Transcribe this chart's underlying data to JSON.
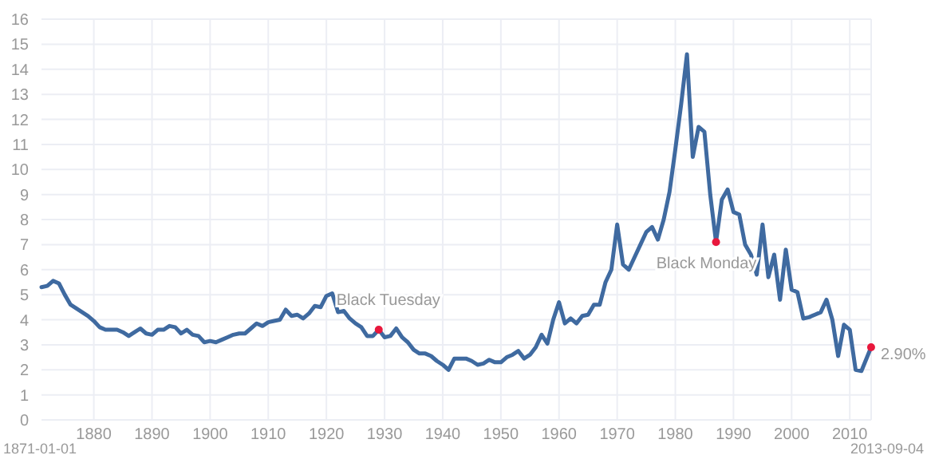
{
  "chart_data": {
    "type": "line",
    "xlim": [
      "1871-01-01",
      "2013-09-04"
    ],
    "xticks": [
      "1880",
      "1890",
      "1900",
      "1910",
      "1920",
      "1930",
      "1940",
      "1950",
      "1960",
      "1970",
      "1980",
      "1990",
      "2000",
      "2010"
    ],
    "ylim": [
      0,
      16
    ],
    "yticks": [
      0,
      1,
      2,
      3,
      4,
      5,
      6,
      7,
      8,
      9,
      10,
      11,
      12,
      13,
      14,
      15,
      16
    ],
    "grid": true,
    "line_style": "solid",
    "marker": "none",
    "x": [
      "1871-01",
      "1872-01",
      "1873-01",
      "1874-01",
      "1875-01",
      "1876-01",
      "1877-01",
      "1878-01",
      "1879-01",
      "1880-01",
      "1881-01",
      "1882-01",
      "1883-01",
      "1884-01",
      "1885-01",
      "1886-01",
      "1887-01",
      "1888-01",
      "1889-01",
      "1890-01",
      "1891-01",
      "1892-01",
      "1893-01",
      "1894-01",
      "1895-01",
      "1896-01",
      "1897-01",
      "1898-01",
      "1899-01",
      "1900-01",
      "1901-01",
      "1902-01",
      "1903-01",
      "1904-01",
      "1905-01",
      "1906-01",
      "1907-01",
      "1908-01",
      "1909-01",
      "1910-01",
      "1911-01",
      "1912-01",
      "1913-01",
      "1914-01",
      "1915-01",
      "1916-01",
      "1917-01",
      "1918-01",
      "1919-01",
      "1920-01",
      "1921-01",
      "1922-01",
      "1923-01",
      "1924-01",
      "1925-01",
      "1926-01",
      "1927-01",
      "1928-01",
      "1929-01",
      "1930-01",
      "1931-01",
      "1932-01",
      "1933-01",
      "1934-01",
      "1935-01",
      "1936-01",
      "1937-01",
      "1938-01",
      "1939-01",
      "1940-01",
      "1941-01",
      "1942-01",
      "1943-01",
      "1944-01",
      "1945-01",
      "1946-01",
      "1947-01",
      "1948-01",
      "1949-01",
      "1950-01",
      "1951-01",
      "1952-01",
      "1953-01",
      "1954-01",
      "1955-01",
      "1956-01",
      "1957-01",
      "1958-01",
      "1959-01",
      "1960-01",
      "1961-01",
      "1962-01",
      "1963-01",
      "1964-01",
      "1965-01",
      "1966-01",
      "1967-01",
      "1968-01",
      "1969-01",
      "1970-01",
      "1971-01",
      "1972-01",
      "1973-01",
      "1974-01",
      "1975-01",
      "1976-01",
      "1977-01",
      "1978-01",
      "1979-01",
      "1980-01",
      "1981-01",
      "1982-01",
      "1983-01",
      "1984-01",
      "1985-01",
      "1986-01",
      "1987-01",
      "1988-01",
      "1989-01",
      "1990-01",
      "1991-01",
      "1992-01",
      "1993-01",
      "1994-01",
      "1995-01",
      "1996-01",
      "1997-01",
      "1998-01",
      "1999-01",
      "2000-01",
      "2001-01",
      "2002-01",
      "2003-01",
      "2004-01",
      "2005-01",
      "2006-01",
      "2007-01",
      "2008-01",
      "2009-01",
      "2010-01",
      "2011-01",
      "2012-01",
      "2013-09"
    ],
    "series": [
      {
        "color": "#3f6aa0",
        "values": [
          5.3,
          5.35,
          5.55,
          5.45,
          5.0,
          4.6,
          4.45,
          4.3,
          4.15,
          3.95,
          3.7,
          3.6,
          3.6,
          3.6,
          3.5,
          3.35,
          3.5,
          3.65,
          3.45,
          3.4,
          3.6,
          3.6,
          3.75,
          3.7,
          3.45,
          3.6,
          3.4,
          3.35,
          3.1,
          3.15,
          3.1,
          3.2,
          3.3,
          3.4,
          3.45,
          3.45,
          3.65,
          3.85,
          3.75,
          3.9,
          3.95,
          4.0,
          4.4,
          4.15,
          4.2,
          4.05,
          4.25,
          4.55,
          4.5,
          4.95,
          5.05,
          4.3,
          4.35,
          4.05,
          3.85,
          3.7,
          3.35,
          3.35,
          3.6,
          3.3,
          3.35,
          3.65,
          3.3,
          3.1,
          2.8,
          2.65,
          2.65,
          2.55,
          2.35,
          2.2,
          2.0,
          2.45,
          2.45,
          2.45,
          2.35,
          2.2,
          2.25,
          2.4,
          2.3,
          2.3,
          2.5,
          2.6,
          2.75,
          2.45,
          2.6,
          2.9,
          3.4,
          3.05,
          4.0,
          4.7,
          3.85,
          4.05,
          3.85,
          4.15,
          4.2,
          4.6,
          4.6,
          5.5,
          6.0,
          7.8,
          6.2,
          6.0,
          6.5,
          7.0,
          7.5,
          7.7,
          7.2,
          8.0,
          9.1,
          10.8,
          12.6,
          14.6,
          10.5,
          11.7,
          11.5,
          9.0,
          7.1,
          8.8,
          9.2,
          8.3,
          8.2,
          7.0,
          6.6,
          5.8,
          7.8,
          5.7,
          6.6,
          4.8,
          6.8,
          5.2,
          5.1,
          4.05,
          4.1,
          4.2,
          4.3,
          4.8,
          4.0,
          2.55,
          3.8,
          3.6,
          2.0,
          1.95,
          2.9
        ]
      }
    ],
    "annotations": [
      {
        "text": "Black Tuesday",
        "x": "1929-01",
        "y": 3.6
      },
      {
        "text": "Black Monday",
        "x": "1987-01",
        "y": 7.1
      },
      {
        "text": "2.90%",
        "x": "2013-09",
        "y": 2.9
      },
      "1871-01-01",
      "2013-09-04"
    ]
  }
}
